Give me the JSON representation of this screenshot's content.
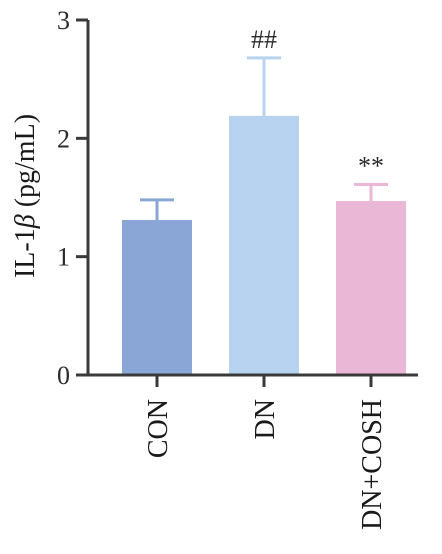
{
  "chart_data": {
    "type": "bar",
    "categories": [
      "CON",
      "DN",
      "DN+COSH"
    ],
    "values": [
      1.31,
      2.19,
      1.47
    ],
    "error_bars": [
      0.17,
      0.49,
      0.14
    ],
    "annotations": [
      "",
      "##",
      "**"
    ],
    "colors": [
      "#8aa6d6",
      "#b7d3ef",
      "#ebb7d6"
    ],
    "ylabel_prefix": "IL-1",
    "ylabel_greek": "β",
    "ylabel_suffix": " (pg/mL)",
    "xlabel": "",
    "title": "",
    "ylim": [
      0,
      3
    ],
    "yticks": [
      0,
      1,
      2,
      3
    ],
    "ytick_labels": [
      "0",
      "1",
      "2",
      "3"
    ],
    "grid": false
  }
}
